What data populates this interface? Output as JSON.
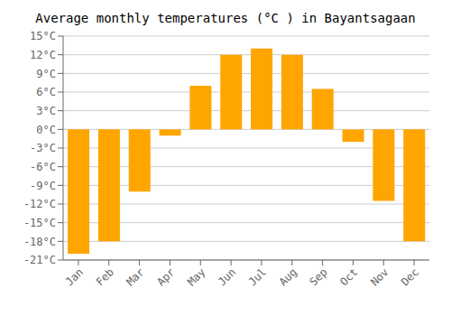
{
  "chart_data": {
    "type": "bar",
    "title": "Average monthly temperatures (°C ) in Bayantsagaan",
    "categories": [
      "Jan",
      "Feb",
      "Mar",
      "Apr",
      "May",
      "Jun",
      "Jul",
      "Aug",
      "Sep",
      "Oct",
      "Nov",
      "Dec"
    ],
    "values": [
      -20,
      -18,
      -10,
      -1,
      7,
      12,
      13,
      12,
      6.5,
      -2,
      -11.5,
      -18
    ],
    "color": "#FFA500",
    "ylim": [
      -21,
      15
    ],
    "yticks": [
      {
        "value": -21,
        "label": "-21°C"
      },
      {
        "value": -18,
        "label": "-18°C"
      },
      {
        "value": -15,
        "label": "-15°C"
      },
      {
        "value": -12,
        "label": "-12°C"
      },
      {
        "value": -9,
        "label": "-9°C"
      },
      {
        "value": -6,
        "label": "-6°C"
      },
      {
        "value": -3,
        "label": "-3°C"
      },
      {
        "value": 0,
        "label": "0°C"
      },
      {
        "value": 3,
        "label": "3°C"
      },
      {
        "value": 6,
        "label": "6°C"
      },
      {
        "value": 9,
        "label": "9°C"
      },
      {
        "value": 12,
        "label": "12°C"
      },
      {
        "value": 15,
        "label": "15°C"
      }
    ],
    "grid": true
  }
}
